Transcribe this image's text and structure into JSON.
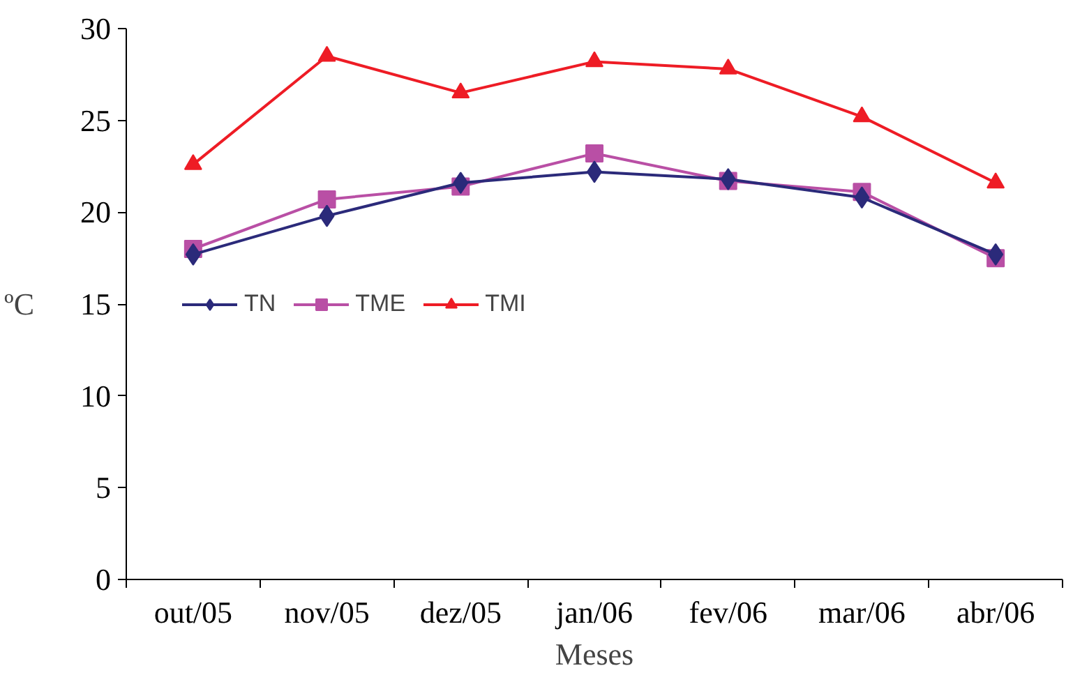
{
  "chart_data": {
    "type": "line",
    "xlabel": "Meses",
    "ylabel": "ºC",
    "categories": [
      "out/05",
      "nov/05",
      "dez/05",
      "jan/06",
      "fev/06",
      "mar/06",
      "abr/06"
    ],
    "series": [
      {
        "name": "TN",
        "color": "#2b2a7a",
        "marker": "diamond",
        "values": [
          17.7,
          19.8,
          21.6,
          22.2,
          21.8,
          20.8,
          17.7
        ]
      },
      {
        "name": "TME",
        "color": "#b94fa5",
        "marker": "square",
        "values": [
          18.0,
          20.7,
          21.4,
          23.2,
          21.7,
          21.1,
          17.5
        ]
      },
      {
        "name": "TMI",
        "color": "#ee1c25",
        "marker": "triangle",
        "values": [
          22.6,
          28.5,
          26.5,
          28.2,
          27.8,
          25.2,
          21.6
        ]
      }
    ],
    "ylim": [
      0,
      30
    ],
    "yticks": [
      0,
      5,
      10,
      15,
      20,
      25,
      30
    ],
    "grid": false,
    "legend": "left"
  }
}
